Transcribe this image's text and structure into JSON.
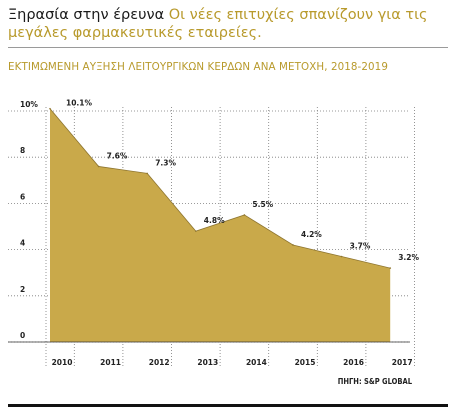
{
  "headline": {
    "bold": "Ξηρασία στην έρευνα",
    "sub": "Οι νέες επιτυχίες σπανίζουν για τις μεγάλες φαρμακευτικές εταιρείες."
  },
  "subtitle": "ΕΚΤΙΜΩΜΕΝΗ ΑΥΞΗΣΗ ΛΕΙΤΟΥΡΓΙΚΩΝ ΚΕΡΔΩΝ ΑΝΑ ΜΕΤΟΧΗ, 2018-2019",
  "source": "ΠΗΓΗ: S&P GLOBAL",
  "colors": {
    "area_fill": "#c9a94a",
    "area_stroke": "#8f7630",
    "accent_text": "#b89a2c",
    "grid": "#7a7a7a"
  },
  "chart_data": {
    "type": "area",
    "categories": [
      "2010",
      "2011",
      "2012",
      "2013",
      "2014",
      "2015",
      "2016",
      "2017"
    ],
    "values": [
      10.1,
      7.6,
      7.3,
      4.8,
      5.5,
      4.2,
      3.7,
      3.2
    ],
    "data_labels": [
      "10.1%",
      "7.6%",
      "7.3%",
      "4.8%",
      "5.5%",
      "4.2%",
      "3.7%",
      "3.2%"
    ],
    "yticks": [
      "0",
      "2",
      "4",
      "6",
      "8",
      "10%"
    ],
    "ytick_values": [
      0,
      2,
      4,
      6,
      8,
      10
    ],
    "ylim": [
      0,
      10
    ],
    "grid": true,
    "title": "ΕΚΤΙΜΩΜΕΝΗ ΑΥΞΗΣΗ ΛΕΙΤΟΥΡΓΙΚΩΝ ΚΕΡΔΩΝ ΑΝΑ ΜΕΤΟΧΗ, 2018-2019",
    "xlabel": "",
    "ylabel": ""
  }
}
